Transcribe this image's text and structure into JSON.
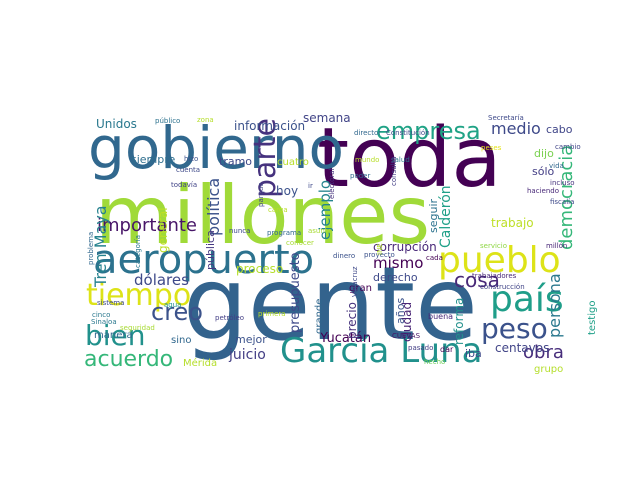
{
  "word_cloud": {
    "words": [
      {
        "text": "gente",
        "color": "#33638d"
      },
      {
        "text": "millones",
        "color": "#a0da39"
      },
      {
        "text": "toda",
        "color": "#440154"
      },
      {
        "text": "gobierno",
        "color": "#31688e"
      },
      {
        "text": "aeropuerto",
        "color": "#2c728e"
      },
      {
        "text": "pueblo",
        "color": "#dde318"
      },
      {
        "text": "García Luna",
        "color": "#21918c"
      },
      {
        "text": "país",
        "color": "#1f9e89"
      },
      {
        "text": "peso",
        "color": "#3b528b"
      },
      {
        "text": "tiempo",
        "color": "#dde318"
      },
      {
        "text": "empresa",
        "color": "#20a386"
      },
      {
        "text": "bien",
        "color": "#21918c"
      },
      {
        "text": "creo",
        "color": "#3b528b"
      },
      {
        "text": "acuerdo",
        "color": "#35b779"
      },
      {
        "text": "parte",
        "color": "#46327e"
      },
      {
        "text": "cosa",
        "color": "#482878"
      },
      {
        "text": "obra",
        "color": "#472d7b"
      },
      {
        "text": "importante",
        "color": "#481668"
      },
      {
        "text": "democracia",
        "color": "#35b779"
      },
      {
        "text": "persona",
        "color": "#2a788e"
      },
      {
        "text": "medio",
        "color": "#3e4989"
      },
      {
        "text": "Tren Maya",
        "color": "#26828e"
      },
      {
        "text": "dólares",
        "color": "#3e4989"
      },
      {
        "text": "juicio",
        "color": "#433e85"
      },
      {
        "text": "mismo",
        "color": "#440154"
      },
      {
        "text": "política",
        "color": "#3b528b"
      },
      {
        "text": "ejemplo",
        "color": "#25848e"
      },
      {
        "text": "presupuesto",
        "color": "#3e4989"
      },
      {
        "text": "centavos",
        "color": "#414487"
      },
      {
        "text": "corrupción",
        "color": "#482878"
      },
      {
        "text": "información",
        "color": "#3b528b"
      },
      {
        "text": "Yucatán",
        "color": "#440154"
      },
      {
        "text": "Calderón",
        "color": "#1fa088"
      },
      {
        "text": "trabajo",
        "color": "#bddf26"
      },
      {
        "text": "proceso",
        "color": "#b5de2b"
      },
      {
        "text": "siempre",
        "color": "#2e6e8e"
      },
      {
        "text": "hoy",
        "color": "#3b528b"
      },
      {
        "text": "Unidos",
        "color": "#2a788e"
      },
      {
        "text": "semana",
        "color": "#414487"
      },
      {
        "text": "general",
        "color": "#bddf26"
      },
      {
        "text": "derecho",
        "color": "#3e4989"
      },
      {
        "text": "reforma",
        "color": "#21918c"
      },
      {
        "text": "precio",
        "color": "#46337e"
      },
      {
        "text": "años",
        "color": "#3b528b"
      },
      {
        "text": "ciudad",
        "color": "#482475"
      },
      {
        "text": "seguir",
        "color": "#2c728e"
      },
      {
        "text": "dijo",
        "color": "#7ad151"
      },
      {
        "text": "sólo",
        "color": "#433e85"
      },
      {
        "text": "cabo",
        "color": "#404688"
      },
      {
        "text": "tramo",
        "color": "#3e4989"
      },
      {
        "text": "cuatro",
        "color": "#b8de29"
      },
      {
        "text": "mejor",
        "color": "#3b528b"
      },
      {
        "text": "sino",
        "color": "#31688e"
      },
      {
        "text": "manera",
        "color": "#31688e"
      },
      {
        "text": "grande",
        "color": "#31688e"
      },
      {
        "text": "gran",
        "color": "#440154"
      },
      {
        "text": "pública",
        "color": "#453781"
      },
      {
        "text": "Mérida",
        "color": "#b5de2b"
      },
      {
        "text": "grupo",
        "color": "#b5de2b"
      },
      {
        "text": "testigo",
        "color": "#1fa088"
      },
      {
        "text": "iba",
        "color": "#3e4989"
      },
      {
        "text": "buena",
        "color": "#482878"
      },
      {
        "text": "CUEVAS",
        "color": "#471164"
      },
      {
        "text": "pasado",
        "color": "#433e85"
      },
      {
        "text": "dar",
        "color": "#440154"
      },
      {
        "text": "hecho",
        "color": "#6ccd5a"
      },
      {
        "text": "cada",
        "color": "#440154"
      },
      {
        "text": "trabajadores",
        "color": "#482878"
      },
      {
        "text": "construcción",
        "color": "#414487"
      },
      {
        "text": "millón",
        "color": "#482878"
      },
      {
        "text": "servicio",
        "color": "#8fd744"
      },
      {
        "text": "fiscalía",
        "color": "#3e4989"
      },
      {
        "text": "incluso",
        "color": "#46337e"
      },
      {
        "text": "vida",
        "color": "#31688e"
      },
      {
        "text": "cambio",
        "color": "#414487"
      },
      {
        "text": "haciendo",
        "color": "#482878"
      },
      {
        "text": "dinero",
        "color": "#3b528b"
      },
      {
        "text": "proyecto",
        "color": "#3b528b"
      },
      {
        "text": "conocer",
        "color": "#a8db34"
      },
      {
        "text": "asunto",
        "color": "#a8db34"
      },
      {
        "text": "programa",
        "color": "#31688e"
      },
      {
        "text": "nunca",
        "color": "#3e4989"
      },
      {
        "text": "carga",
        "color": "#b8de29"
      },
      {
        "text": "parque",
        "color": "#414487"
      },
      {
        "text": "petróleo",
        "color": "#433e85"
      },
      {
        "text": "primera",
        "color": "#b8de29"
      },
      {
        "text": "seguridad",
        "color": "#a8db34"
      },
      {
        "text": "agua",
        "color": "#21918c"
      },
      {
        "text": "cinco",
        "color": "#2a788e"
      },
      {
        "text": "Sinaloa",
        "color": "#2a788e"
      },
      {
        "text": "sistema",
        "color": "#3e4989"
      },
      {
        "text": "problema",
        "color": "#31688e"
      },
      {
        "text": "categoría",
        "color": "#2a788e"
      },
      {
        "text": "todavía",
        "color": "#414487"
      },
      {
        "text": "cuenta",
        "color": "#3e4989"
      },
      {
        "text": "hizo",
        "color": "#3b528b"
      },
      {
        "text": "público",
        "color": "#2c728e"
      },
      {
        "text": "zona",
        "color": "#b5de2b"
      },
      {
        "text": "director",
        "color": "#31688e"
      },
      {
        "text": "Constitución",
        "color": "#3e4989"
      },
      {
        "text": "Secretaría",
        "color": "#3e4989"
      },
      {
        "text": "peses",
        "color": "#e5e419"
      },
      {
        "text": "salud",
        "color": "#2a788e"
      },
      {
        "text": "mundo",
        "color": "#b8de29"
      },
      {
        "text": "poder",
        "color": "#31688e"
      },
      {
        "text": "consulta",
        "color": "#433e85"
      },
      {
        "text": "electoral",
        "color": "#46337e"
      },
      {
        "text": "INE",
        "color": "#b5de2b"
      },
      {
        "text": "ir",
        "color": "#3e4989"
      },
      {
        "text": "Veracruz",
        "color": "#3e4989"
      }
    ]
  }
}
